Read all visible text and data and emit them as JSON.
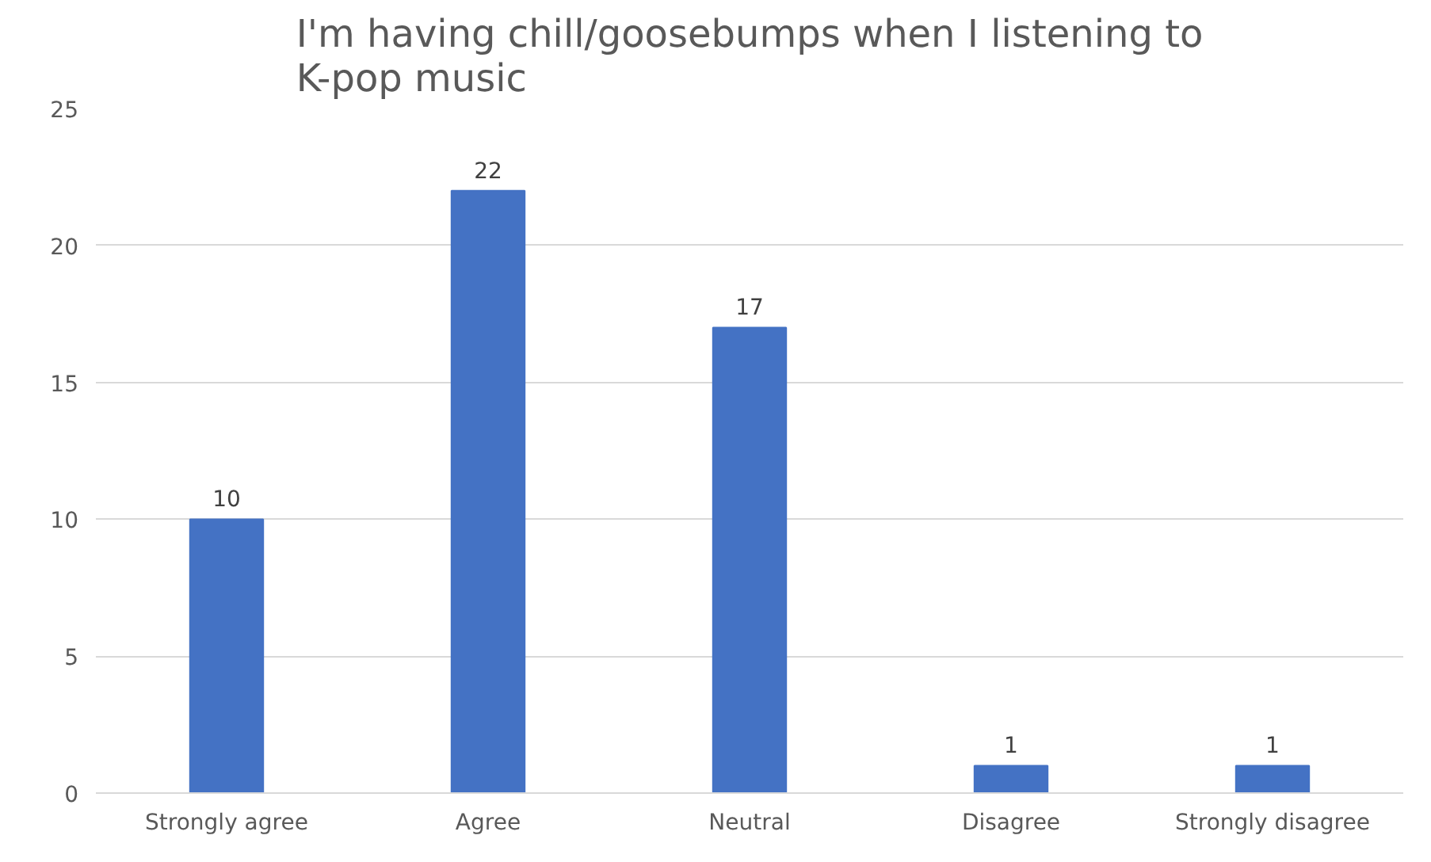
{
  "chart_data": {
    "type": "bar",
    "title": "I'm having chill/goosebumps when I listening to K-pop music",
    "categories": [
      "Strongly agree",
      "Agree",
      "Neutral",
      "Disagree",
      "Strongly disagree"
    ],
    "values": [
      10,
      22,
      17,
      1,
      1
    ],
    "color": "#4472c4",
    "ylim": [
      0,
      25
    ],
    "yticks": [
      0,
      5,
      10,
      15,
      20,
      25
    ],
    "grid": "y",
    "data_labels": true
  }
}
